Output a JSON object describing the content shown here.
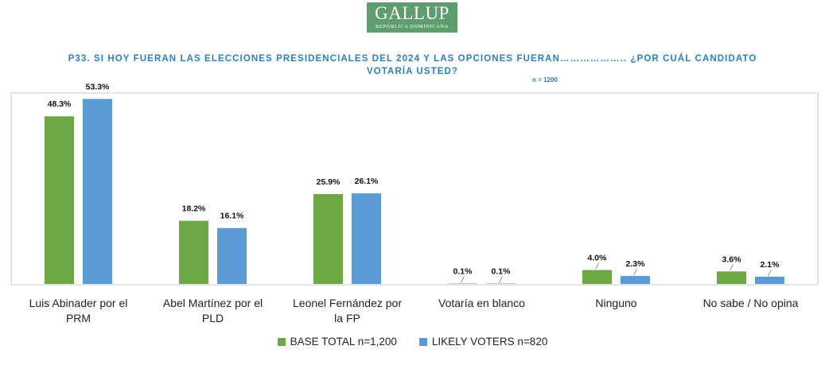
{
  "logo": {
    "name": "GALLUP",
    "subtitle": "REPÚBLICA DOMINICANA"
  },
  "question": {
    "line1": "P33. SI HOY FUERAN LAS ELECCIONES PRESIDENCIALES DEL 2024 Y LAS OPCIONES FUERAN……………….. ¿POR CUÁL CANDIDATO",
    "line2": "VOTARÍA USTED?",
    "sample": "n = 1200"
  },
  "colors": {
    "base": "#6ca844",
    "likely": "#5b9bd5",
    "frame": "#c9c9c9"
  },
  "chart_data": {
    "type": "bar",
    "categories": [
      [
        "Luis Abinader por el",
        "PRM"
      ],
      [
        "Abel Martínez por el",
        "PLD"
      ],
      [
        "Leonel Fernández por",
        "la FP"
      ],
      [
        "Votaría en blanco"
      ],
      [
        "Ninguno"
      ],
      [
        "No sabe / No opina"
      ]
    ],
    "series": [
      {
        "name": "BASE TOTAL n=1,200",
        "values": [
          48.3,
          18.2,
          25.9,
          0.1,
          4.0,
          3.6
        ],
        "labels": [
          "48.3%",
          "18.2%",
          "25.9%",
          "0.1%",
          "4.0%",
          "3.6%"
        ]
      },
      {
        "name": "LIKELY VOTERS n=820",
        "values": [
          53.3,
          16.1,
          26.1,
          0.1,
          2.3,
          2.1
        ],
        "labels": [
          "53.3%",
          "16.1%",
          "26.1%",
          "0.1%",
          "2.3%",
          "2.1%"
        ]
      }
    ],
    "ylim": [
      0,
      55
    ],
    "grid": false,
    "legend": "bottom-center"
  }
}
